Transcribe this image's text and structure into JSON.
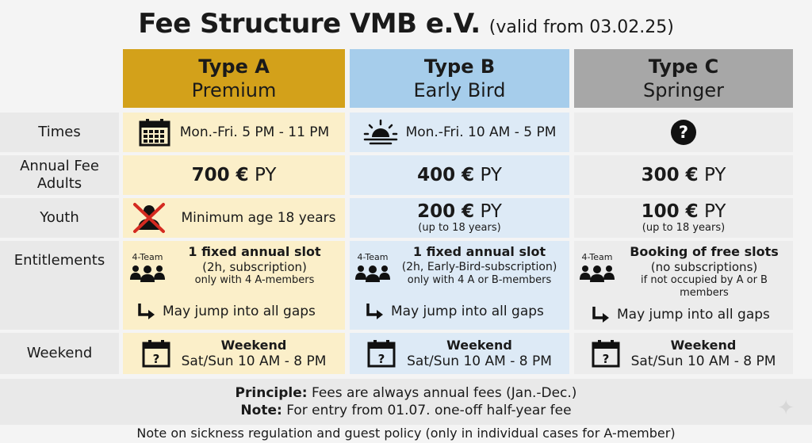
{
  "title": {
    "main": "Fee Structure VMB e.V.",
    "sub": "(valid from 03.02.25)"
  },
  "row_labels": {
    "times": "Times",
    "fee_line1": "Annual Fee",
    "fee_line2": "Adults",
    "youth": "Youth",
    "entitlements": "Entitlements",
    "weekend": "Weekend"
  },
  "types": {
    "a": {
      "name": "Type A",
      "subtitle": "Premium",
      "times": "Mon.-Fri. 5 PM - 11 PM",
      "fee_amount": "700 €",
      "fee_unit": "PY",
      "youth": "Minimum age 18 years",
      "team_label": "4-Team",
      "ent_title": "1 fixed annual slot",
      "ent_detail": "(2h, subscription)",
      "ent_condition": "only with 4 A-members",
      "jump": "May jump into all gaps",
      "weekend_title": "Weekend",
      "weekend_time": "Sat/Sun 10 AM - 8 PM"
    },
    "b": {
      "name": "Type B",
      "subtitle": "Early Bird",
      "times": "Mon.-Fri. 10 AM - 5 PM",
      "fee_amount": "400 €",
      "fee_unit": "PY",
      "youth_amount": "200 €",
      "youth_unit": "PY",
      "youth_note": "(up to 18 years)",
      "team_label": "4-Team",
      "ent_title": "1 fixed annual slot",
      "ent_detail": "(2h, Early-Bird-subscription)",
      "ent_condition": "only with 4 A or B-members",
      "jump": "May jump into all gaps",
      "weekend_title": "Weekend",
      "weekend_time": "Sat/Sun 10 AM - 8 PM"
    },
    "c": {
      "name": "Type C",
      "subtitle": "Springer",
      "fee_amount": "300 €",
      "fee_unit": "PY",
      "youth_amount": "100 €",
      "youth_unit": "PY",
      "youth_note": "(up to 18 years)",
      "team_label": "4-Team",
      "ent_title": "Booking of free slots",
      "ent_detail": "(no subscriptions)",
      "ent_condition_1": "if not occupied by A or B",
      "ent_condition_2": "members",
      "jump": "May jump into all gaps",
      "weekend_title": "Weekend",
      "weekend_time": "Sat/Sun 10 AM - 8 PM"
    }
  },
  "principle": {
    "label": "Principle:",
    "text": "Fees are always annual fees (Jan.-Dec.)"
  },
  "note": {
    "label": "Note:",
    "text": "For entry from 01.07. one-off half-year fee"
  },
  "footer": "Note on sickness regulation and guest policy (only in individual cases for A-member)",
  "colors": {
    "type_a": "#d3a11a",
    "type_b": "#a6cdeb",
    "type_c": "#a7a7a7"
  },
  "icons": {
    "times_a": "calendar-grid-icon",
    "times_b": "sunrise-icon",
    "times_c": "question-icon",
    "youth_a": "crossed-out-person-icon",
    "team": "team-people-icon",
    "jump": "arrow-turn-right-icon",
    "weekend": "calendar-question-icon"
  }
}
